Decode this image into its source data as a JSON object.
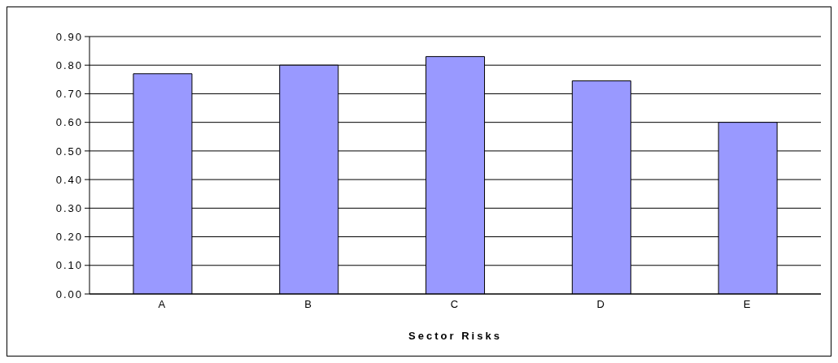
{
  "chart_data": {
    "type": "bar",
    "xlabel": "Sector Risks",
    "categories": [
      "A",
      "B",
      "C",
      "D",
      "E"
    ],
    "values": [
      0.77,
      0.8,
      0.83,
      0.745,
      0.6
    ],
    "color": "#9999ff",
    "ylim": [
      0,
      0.9
    ],
    "yticks": [
      {
        "value": 0,
        "label": "0.00"
      },
      {
        "value": 0.1,
        "label": "0.10"
      },
      {
        "value": 0.2,
        "label": "0.20"
      },
      {
        "value": 0.3,
        "label": "0.30"
      },
      {
        "value": 0.4,
        "label": "0.40"
      },
      {
        "value": 0.5,
        "label": "0.50"
      },
      {
        "value": 0.6,
        "label": "0.60"
      },
      {
        "value": 0.7,
        "label": "0.70"
      },
      {
        "value": 0.8,
        "label": "0.80"
      },
      {
        "value": 0.9,
        "label": "0.90"
      }
    ],
    "grid": "y"
  }
}
